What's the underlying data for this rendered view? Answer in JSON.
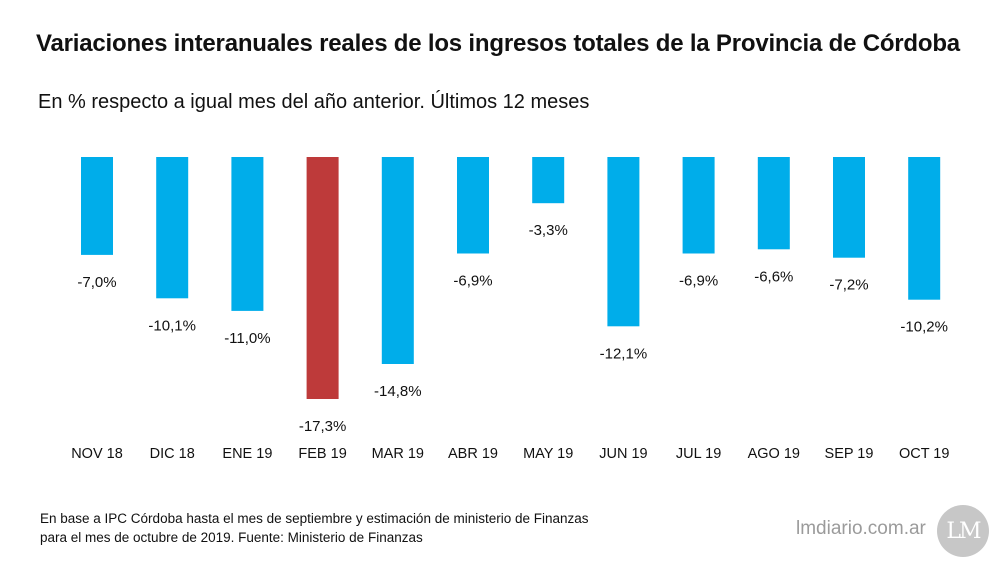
{
  "chart_data": {
    "type": "bar",
    "title": "Variaciones interanuales reales de los ingresos totales de la Provincia de Córdoba",
    "subtitle": "En % respecto a igual mes del año anterior. Últimos 12 meses",
    "categories": [
      "NOV 18",
      "DIC 18",
      "ENE 19",
      "FEB 19",
      "MAR 19",
      "ABR 19",
      "MAY 19",
      "JUN 19",
      "JUL 19",
      "AGO 19",
      "SEP 19",
      "OCT 19"
    ],
    "values": [
      -7.0,
      -10.1,
      -11.0,
      -17.3,
      -14.8,
      -6.9,
      -3.3,
      -12.1,
      -6.9,
      -6.6,
      -7.2,
      -10.2
    ],
    "labels": [
      "-7,0%",
      "-10,1%",
      "-11,0%",
      "-17,3%",
      "-14,8%",
      "-6,9%",
      "-3,3%",
      "-12,1%",
      "-6,9%",
      "-6,6%",
      "-7,2%",
      "-10,2%"
    ],
    "highlight": "FEB 19",
    "colors": {
      "bar": "#00adea",
      "highlight": "#be3a3a"
    },
    "ylim": [
      -17.3,
      0
    ]
  },
  "footnote": {
    "line1": "En base a IPC Córdoba hasta el mes de septiembre y estimación de ministerio de Finanzas",
    "line2": "para el mes de octubre de 2019.  Fuente: Ministerio de Finanzas"
  },
  "brand": {
    "site": "lmdiario.com.ar",
    "logo": "LM"
  }
}
